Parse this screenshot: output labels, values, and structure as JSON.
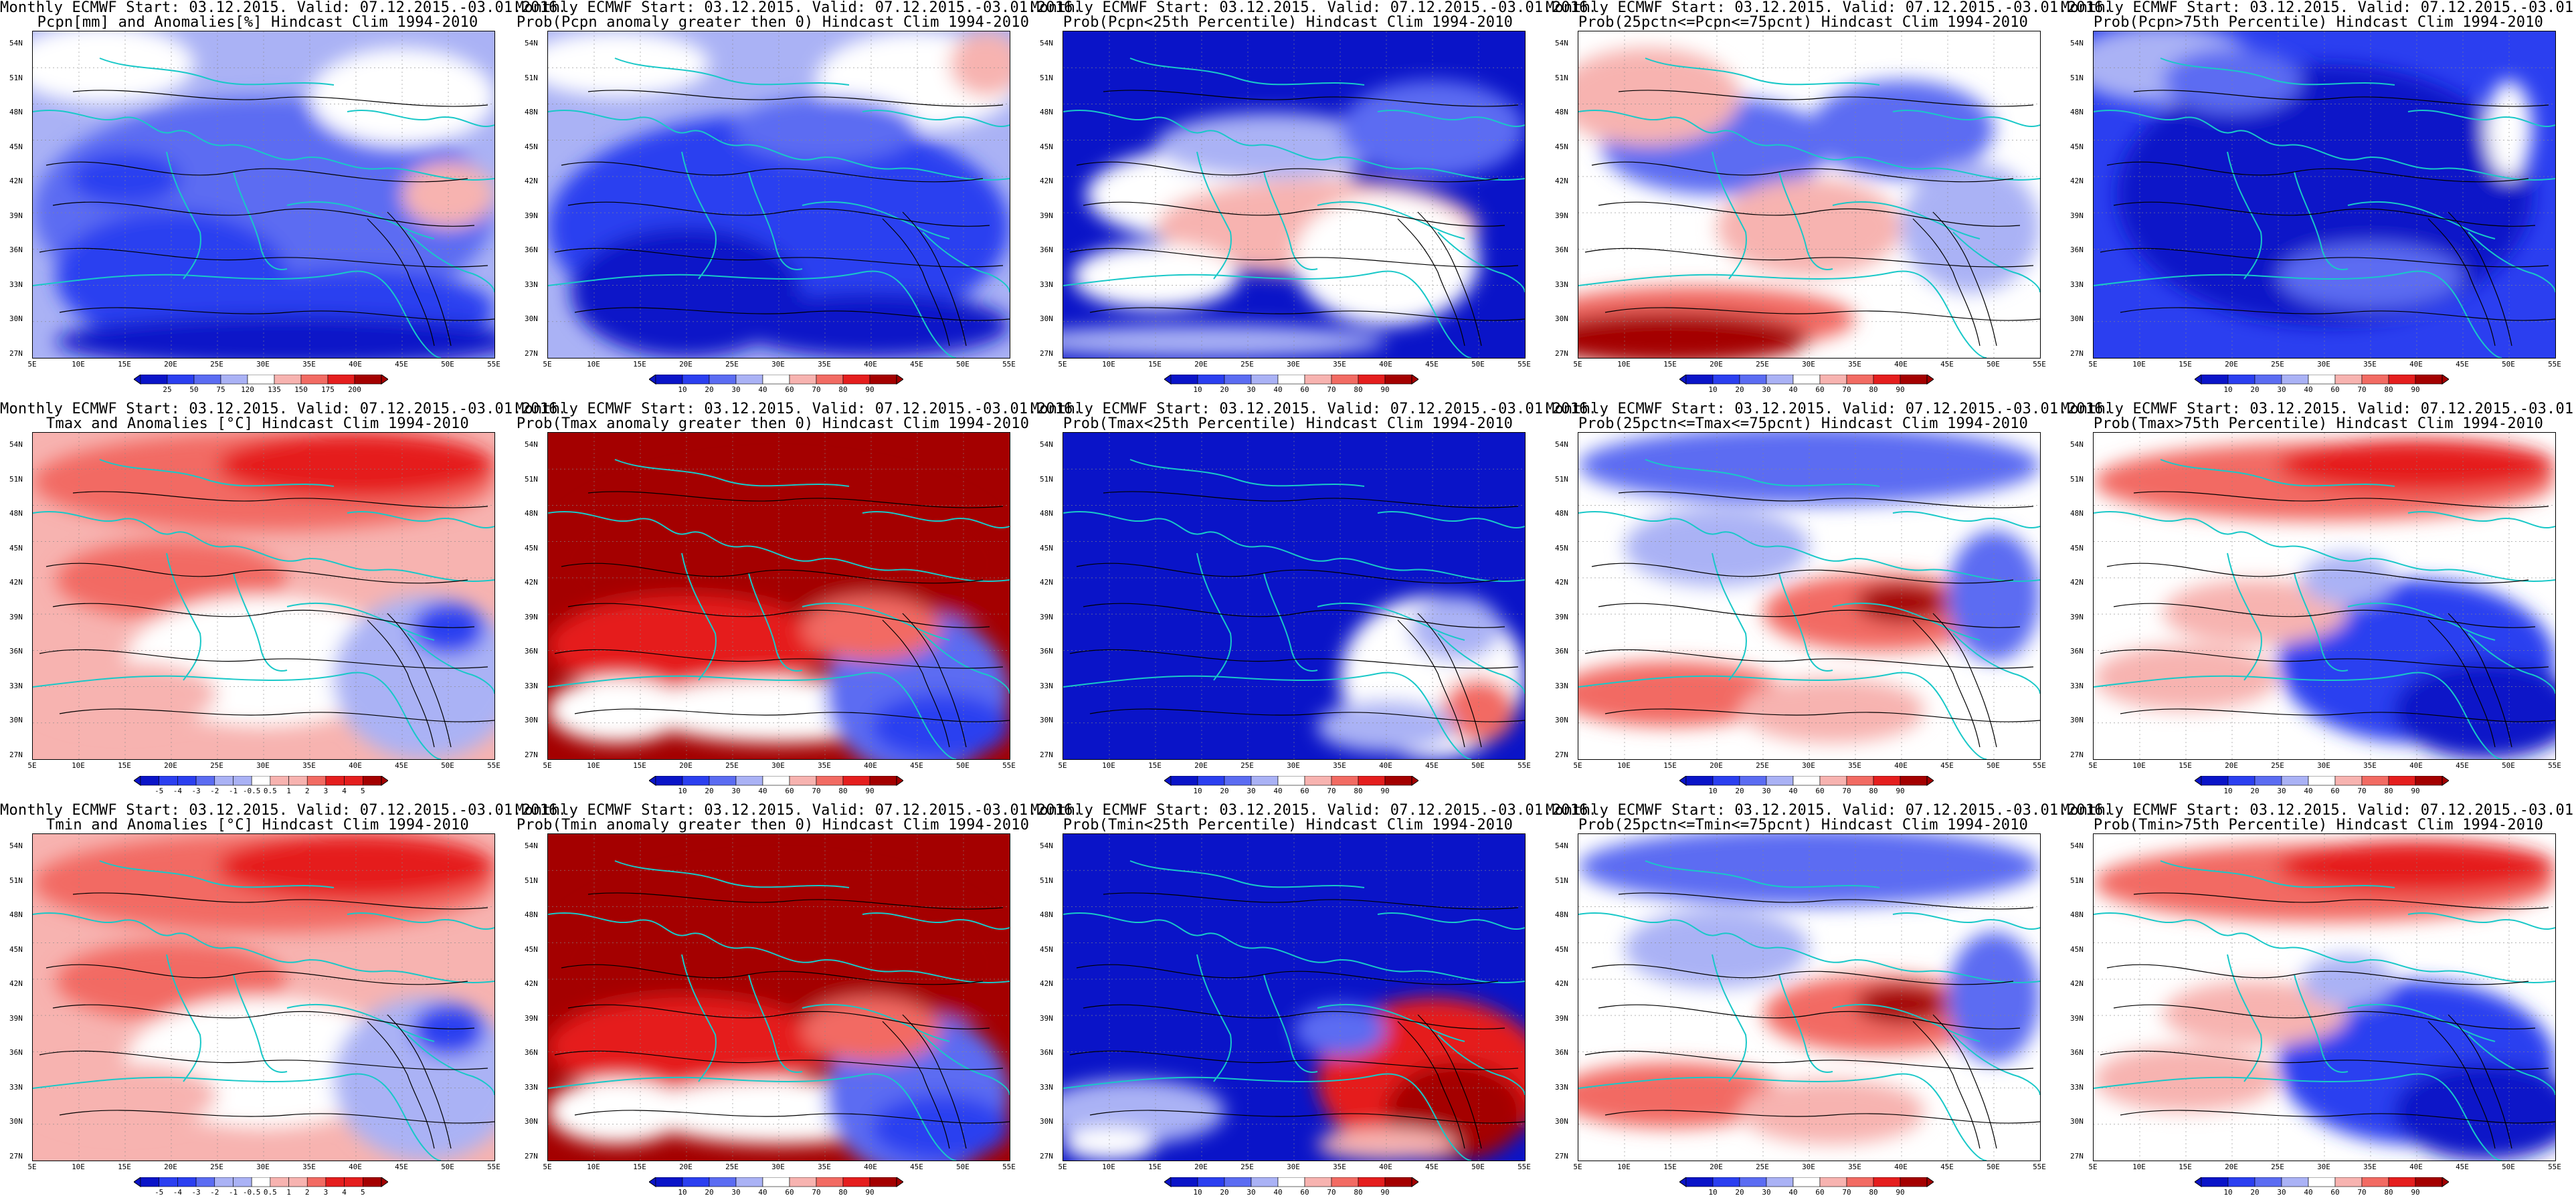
{
  "common_title": "Monthly ECMWF Start: 03.12.2015. Valid: 07.12.2015.-03.01.2016.",
  "lat_labels": [
    "54N",
    "51N",
    "48N",
    "45N",
    "42N",
    "39N",
    "36N",
    "33N",
    "30N",
    "27N"
  ],
  "lon_labels": [
    "5E",
    "10E",
    "15E",
    "20E",
    "25E",
    "30E",
    "35E",
    "40E",
    "45E",
    "50E",
    "55E"
  ],
  "colors": {
    "blue_dark": "#0a14c8",
    "blue": "#2b3ff0",
    "blue_mid": "#5b6cf2",
    "blue_light": "#aab2f5",
    "white": "#ffffff",
    "red_light": "#f7b3b0",
    "red_mid": "#f26b63",
    "red": "#e51e1e",
    "red_dark": "#a40000",
    "coast": "#19c8c8",
    "contour": "#000000"
  },
  "colorbars": {
    "pcpn_anom": [
      "25",
      "50",
      "75",
      "120",
      "135",
      "150",
      "175",
      "200"
    ],
    "temp_anom": [
      "-5",
      "-4",
      "-3",
      "-2",
      "-1",
      "-0.5",
      "0.5",
      "1",
      "2",
      "3",
      "4",
      "5"
    ],
    "prob": [
      "10",
      "20",
      "30",
      "40",
      "60",
      "70",
      "80",
      "90"
    ]
  },
  "panels": [
    {
      "id": "r1c1",
      "subtitle": "Pcpn[mm] and Anomalies[%] Hindcast Clim 1994-2010",
      "cbar": "pcpn_anom",
      "style": "pcpn"
    },
    {
      "id": "r1c2",
      "subtitle": "Prob(Pcpn anomaly greater then 0) Hindcast Clim 1994-2010",
      "cbar": "prob",
      "style": "pcpn_prob"
    },
    {
      "id": "r1c3",
      "subtitle": "Prob(Pcpn<25th Percentile) Hindcast Clim 1994-2010",
      "cbar": "prob",
      "style": "pcpn_low"
    },
    {
      "id": "r1c4",
      "subtitle": "Prob(25pctn<=Pcpn<=75pcnt) Hindcast Clim 1994-2010",
      "cbar": "prob",
      "style": "pcpn_mid"
    },
    {
      "id": "r1c5",
      "subtitle": "Prob(Pcpn>75th Percentile) Hindcast Clim 1994-2010",
      "cbar": "prob",
      "style": "pcpn_high"
    },
    {
      "id": "r2c1",
      "subtitle": "Tmax and Anomalies [°C] Hindcast Clim 1994-2010",
      "cbar": "temp_anom",
      "style": "t_anom"
    },
    {
      "id": "r2c2",
      "subtitle": "Prob(Tmax anomaly greater then 0) Hindcast Clim 1994-2010",
      "cbar": "prob",
      "style": "t_prob"
    },
    {
      "id": "r2c3",
      "subtitle": "Prob(Tmax<25th Percentile) Hindcast Clim 1994-2010",
      "cbar": "prob",
      "style": "t_low"
    },
    {
      "id": "r2c4",
      "subtitle": "Prob(25pctn<=Tmax<=75pcnt) Hindcast Clim 1994-2010",
      "cbar": "prob",
      "style": "t_mid"
    },
    {
      "id": "r2c5",
      "subtitle": "Prob(Tmax>75th Percentile) Hindcast Clim 1994-2010",
      "cbar": "prob",
      "style": "t_high"
    },
    {
      "id": "r3c1",
      "subtitle": "Tmin and Anomalies [°C] Hindcast Clim 1994-2010",
      "cbar": "temp_anom",
      "style": "t_anom"
    },
    {
      "id": "r3c2",
      "subtitle": "Prob(Tmin anomaly greater then 0) Hindcast Clim 1994-2010",
      "cbar": "prob",
      "style": "t_prob"
    },
    {
      "id": "r3c3",
      "subtitle": "Prob(Tmin<25th Percentile) Hindcast Clim 1994-2010",
      "cbar": "prob",
      "style": "tmin_low"
    },
    {
      "id": "r3c4",
      "subtitle": "Prob(25pctn<=Tmin<=75pcnt) Hindcast Clim 1994-2010",
      "cbar": "prob",
      "style": "t_mid"
    },
    {
      "id": "r3c5",
      "subtitle": "Prob(Tmin>75th Percentile) Hindcast Clim 1994-2010",
      "cbar": "prob",
      "style": "t_high"
    }
  ]
}
